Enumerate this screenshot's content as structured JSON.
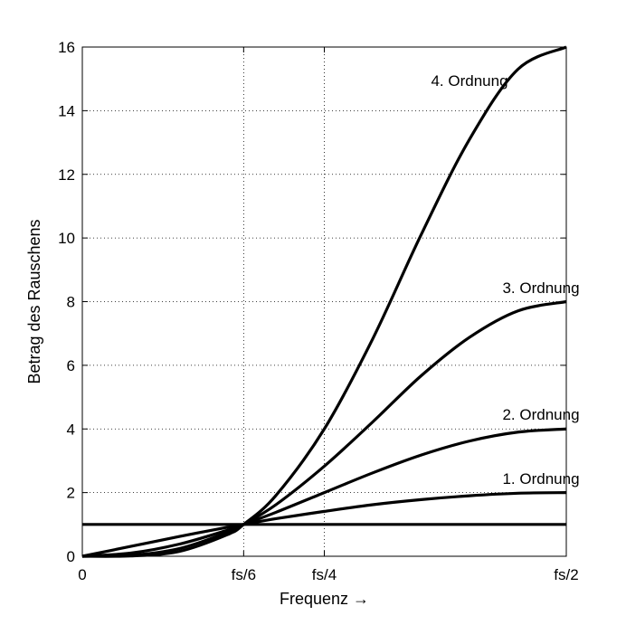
{
  "chart_data": {
    "type": "line",
    "xlabel": "Frequenz →",
    "ylabel": "Betrag des Rauschens",
    "xlim": [
      0,
      0.5
    ],
    "ylim": [
      0,
      16
    ],
    "x_unit": "fs",
    "x_ticks": [
      {
        "value": 0,
        "label": "0"
      },
      {
        "value": 0.16667,
        "label": "fs/6"
      },
      {
        "value": 0.25,
        "label": "fs/4"
      },
      {
        "value": 0.5,
        "label": "fs/2"
      }
    ],
    "y_ticks": [
      0,
      2,
      4,
      6,
      8,
      10,
      12,
      14,
      16
    ],
    "grid": true,
    "grid_style": "dotted",
    "line_color": "#000000",
    "series": [
      {
        "name": "",
        "x": [
          0,
          0.5
        ],
        "y": [
          1,
          1
        ]
      },
      {
        "name": "1. Ordnung",
        "x": [
          0,
          0.05,
          0.1,
          0.15,
          0.1667,
          0.2,
          0.25,
          0.3,
          0.35,
          0.4,
          0.45,
          0.5
        ],
        "y": [
          0,
          0.31,
          0.62,
          0.91,
          1.0,
          1.18,
          1.41,
          1.62,
          1.78,
          1.9,
          1.98,
          2.0
        ]
      },
      {
        "name": "2. Ordnung",
        "x": [
          0,
          0.05,
          0.1,
          0.15,
          0.1667,
          0.2,
          0.25,
          0.3,
          0.35,
          0.4,
          0.45,
          0.5
        ],
        "y": [
          0,
          0.1,
          0.38,
          0.82,
          1.0,
          1.38,
          2.0,
          2.62,
          3.18,
          3.62,
          3.9,
          4.0
        ]
      },
      {
        "name": "3. Ordnung",
        "x": [
          0,
          0.05,
          0.1,
          0.15,
          0.1667,
          0.2,
          0.25,
          0.3,
          0.35,
          0.4,
          0.45,
          0.5
        ],
        "y": [
          0,
          0.03,
          0.24,
          0.75,
          1.0,
          1.62,
          2.83,
          4.22,
          5.67,
          6.88,
          7.71,
          8.0
        ]
      },
      {
        "name": "4. Ordnung",
        "x": [
          0,
          0.05,
          0.1,
          0.15,
          0.1667,
          0.2,
          0.25,
          0.3,
          0.35,
          0.4,
          0.45,
          0.5
        ],
        "y": [
          0,
          0.01,
          0.15,
          0.68,
          1.0,
          1.91,
          4.0,
          6.83,
          10.1,
          13.1,
          15.3,
          16.0
        ]
      }
    ],
    "annotations": [
      {
        "text": "1. Ordnung",
        "series": 1
      },
      {
        "text": "2. Ordnung",
        "series": 2
      },
      {
        "text": "3. Ordnung",
        "series": 3
      },
      {
        "text": "4. Ordnung",
        "series": 4
      }
    ]
  }
}
